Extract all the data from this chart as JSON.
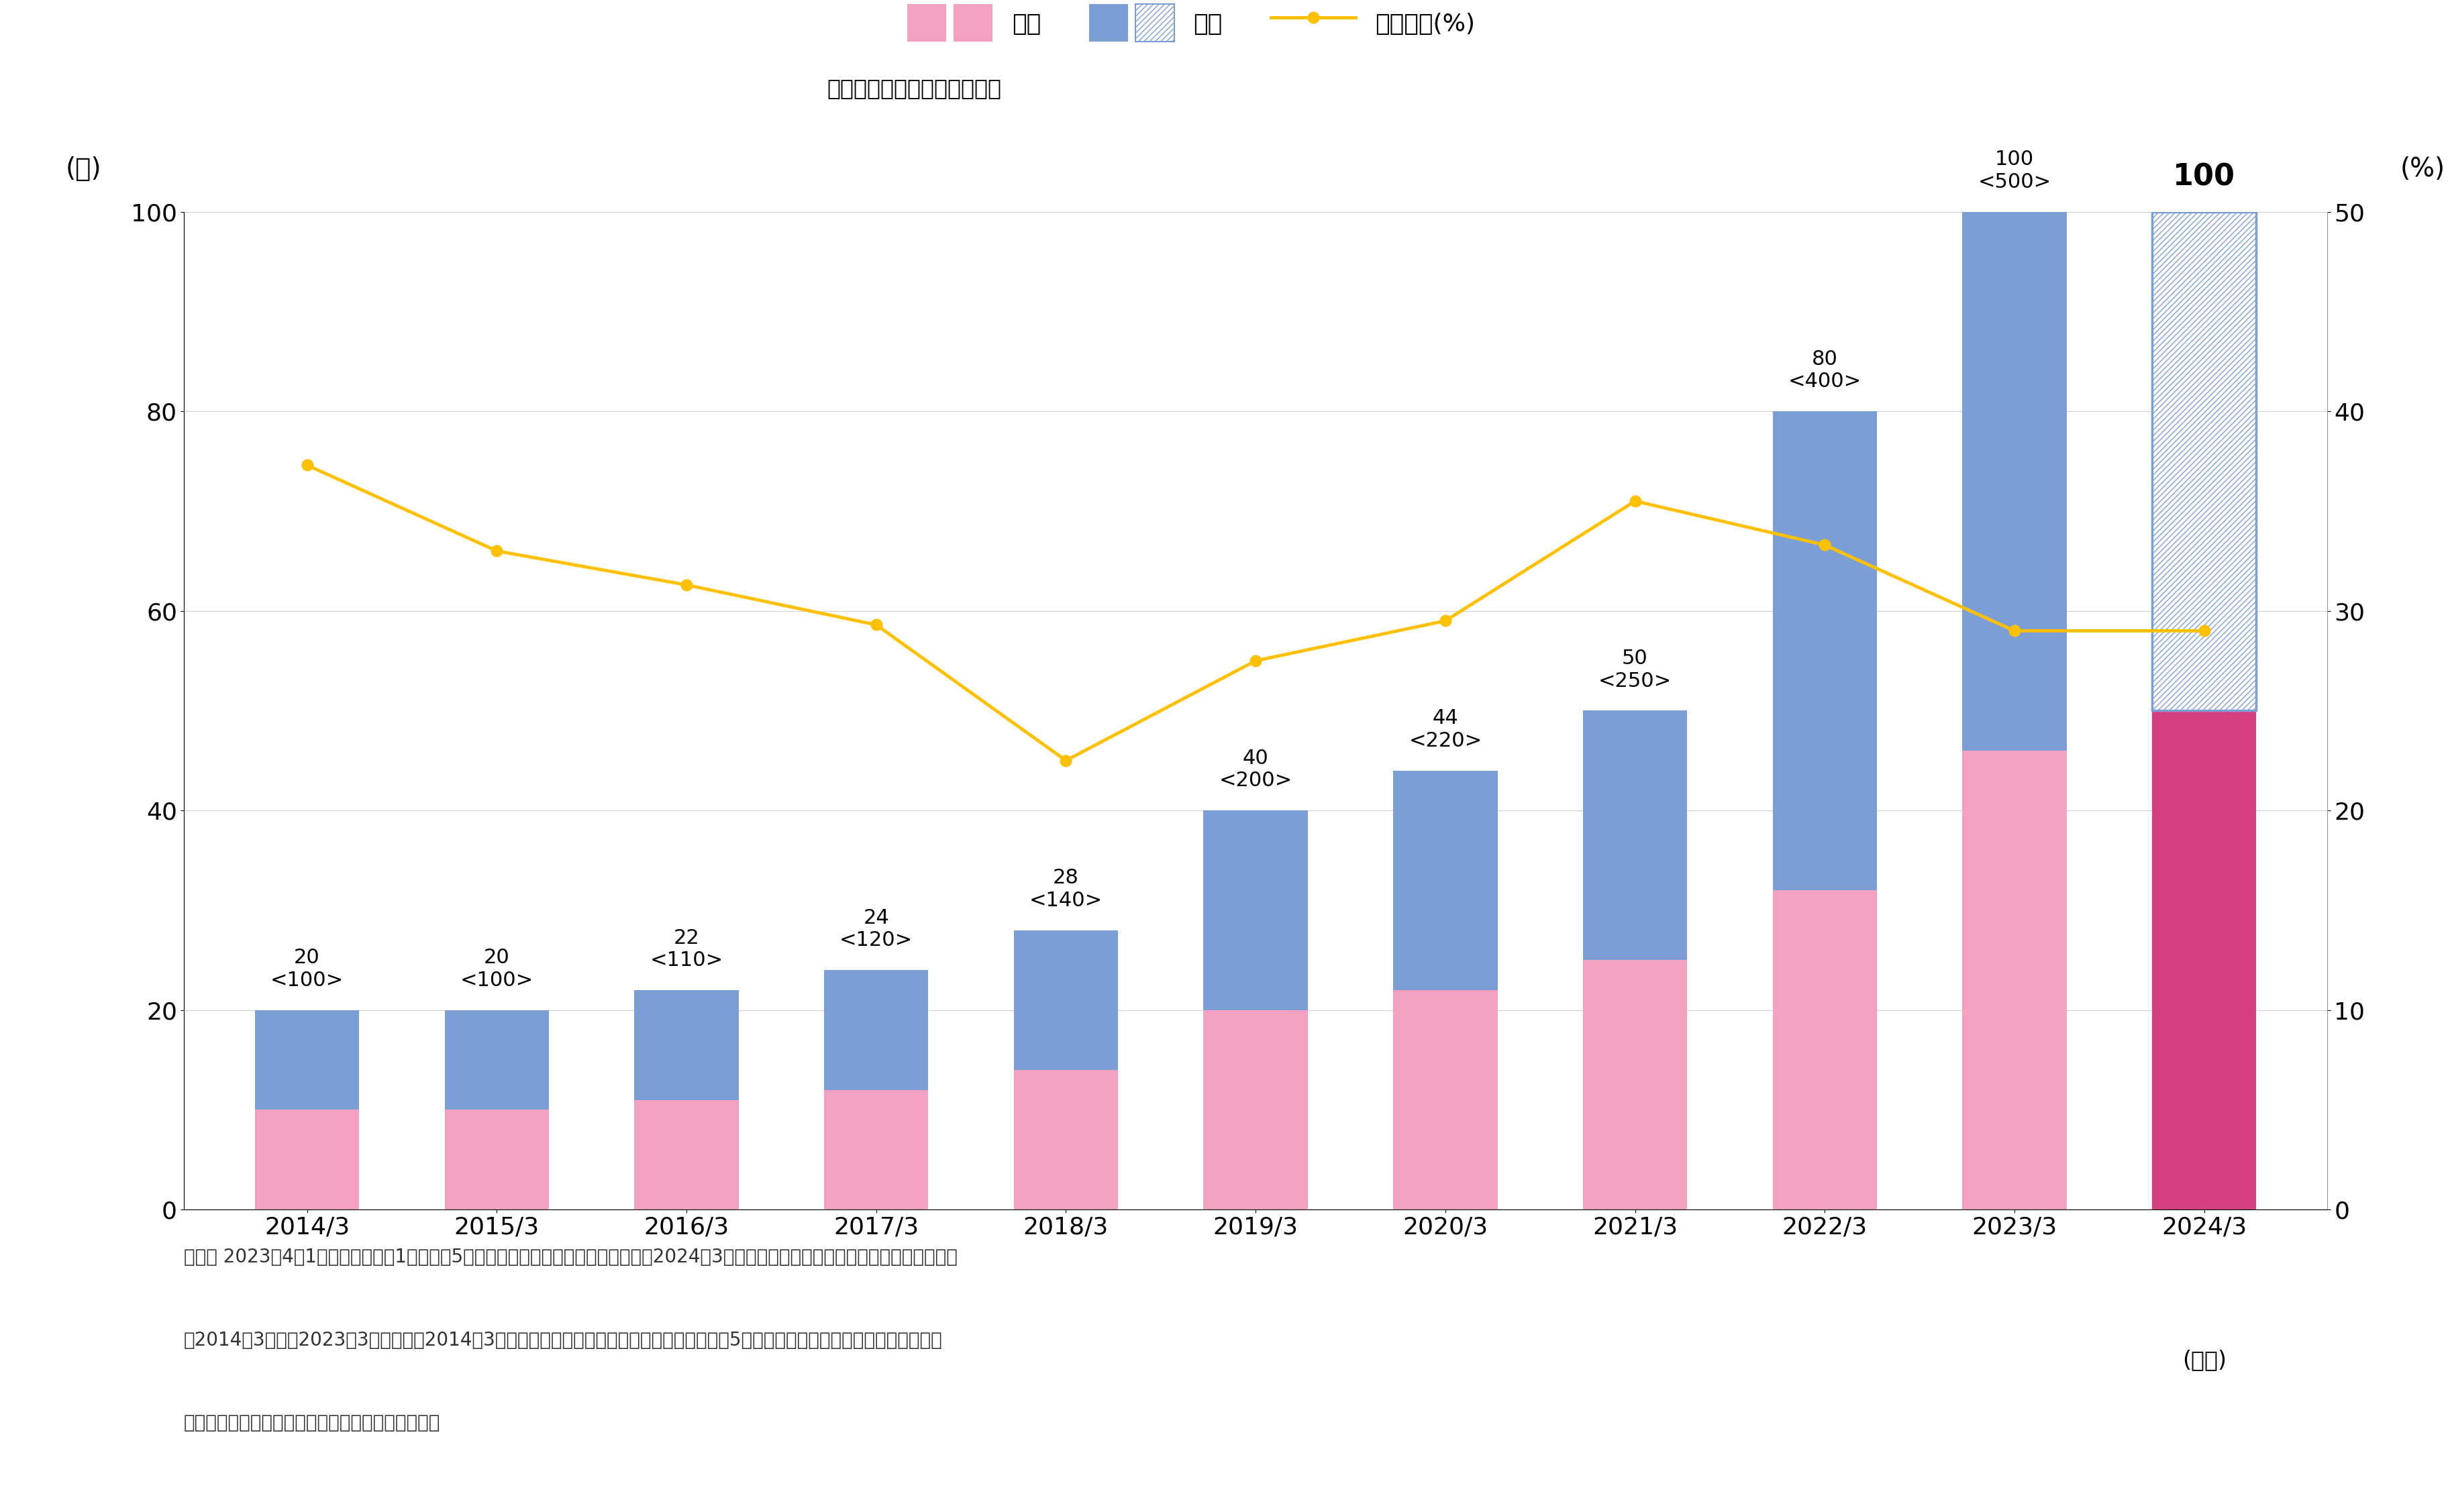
{
  "categories": [
    "2014/3",
    "2015/3",
    "2016/3",
    "2017/3",
    "2018/3",
    "2019/3",
    "2020/3",
    "2021/3",
    "2022/3",
    "2023/3",
    "2024/3"
  ],
  "interim_dividend": [
    10,
    10,
    11,
    12,
    14,
    20,
    22,
    25,
    32,
    46,
    50
  ],
  "yearend_dividend": [
    10,
    10,
    11,
    12,
    14,
    20,
    22,
    25,
    48,
    54,
    50
  ],
  "total_dividend": [
    20,
    20,
    22,
    24,
    28,
    40,
    44,
    50,
    80,
    100,
    100
  ],
  "dividend_yield": [
    37.3,
    33.0,
    31.3,
    29.3,
    22.5,
    27.5,
    29.5,
    35.5,
    33.3,
    29.0,
    29.0
  ],
  "top_labels": [
    "20\n<100>",
    "20\n<100>",
    "22\n<110>",
    "24\n<120>",
    "28\n<140>",
    "40\n<200>",
    "44\n<220>",
    "50\n<250>",
    "80\n<400>",
    "100\n<500>",
    "100"
  ],
  "pink_color": "#F4A0C0",
  "blue_color": "#7B9FD4",
  "pink_forecast_color": "#D64080",
  "line_color": "#FFC000",
  "ylabel_left": "(円)",
  "ylabel_right": "(%)",
  "ylim_left": [
    0,
    100
  ],
  "ylim_right": [
    0,
    50
  ],
  "yticks_left": [
    0,
    20,
    40,
    60,
    80,
    100
  ],
  "yticks_right": [
    0,
    10,
    20,
    30,
    40,
    50
  ],
  "legend_interim": "中間",
  "legend_yearend": "期末",
  "legend_yield": "配当性向(%)",
  "note_line1": "（注） 2023年4朎1日付で普通株式1株につき5株の割合で株式分割を行いました。　2024年3月期は分割後の配当金のみを記載しています。",
  "note_line2": "　2014年3月期～2023年3月期は、　2014年3月期の期首に株式分割が行われたと仮定し、　5分割後の株式数により算出した額を上段",
  "note_line3": "に記載しています。　（＜＞内は分割前の配当金）",
  "subtitle": "＜＞内：株式分割前の配当金",
  "forecast_label": "(予想)"
}
